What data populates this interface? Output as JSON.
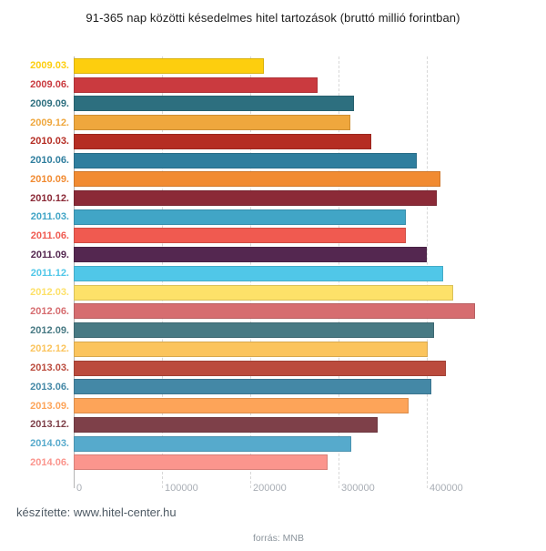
{
  "title": "91-365 nap közötti késedelmes hitel tartozások (bruttó millió forintban)",
  "chart_data": {
    "type": "bar",
    "orientation": "horizontal",
    "title": "91-365 nap közötti késedelmes hitel tartozások (bruttó millió forintban)",
    "xlabel": "",
    "ylabel": "",
    "xlim": [
      0,
      535000
    ],
    "x_ticks": [
      {
        "value": 0,
        "label": "0"
      },
      {
        "value": 100000,
        "label": "100000"
      },
      {
        "value": 200000,
        "label": "200000"
      },
      {
        "value": 300000,
        "label": "300000"
      },
      {
        "value": 400000,
        "label": "400000"
      }
    ],
    "grid": "vertical-dashed",
    "legend": "none",
    "categories": [
      "2009.03.",
      "2009.06.",
      "2009.09.",
      "2009.12.",
      "2010.03.",
      "2010.06.",
      "2010.09.",
      "2010.12.",
      "2011.03.",
      "2011.06.",
      "2011.09.",
      "2011.12.",
      "2012.03.",
      "2012.06.",
      "2012.09.",
      "2012.12.",
      "2013.03.",
      "2013.06.",
      "2013.09.",
      "2013.12.",
      "2014.03.",
      "2014.06."
    ],
    "values": [
      215000,
      276000,
      317000,
      313000,
      337000,
      389000,
      415000,
      411000,
      376000,
      376000,
      400000,
      419000,
      430000,
      455000,
      408000,
      401000,
      422000,
      405000,
      379000,
      344000,
      314000,
      288000
    ],
    "colors": [
      "#fdce0e",
      "#ca3a3f",
      "#2d6f7f",
      "#efa73d",
      "#b52d23",
      "#2f7e9e",
      "#f18b32",
      "#8b2a37",
      "#41a5c6",
      "#f05a50",
      "#542750",
      "#50c7e8",
      "#fde169",
      "#d66d70",
      "#487a84",
      "#fbc45d",
      "#bb4b3d",
      "#4488a6",
      "#fda459",
      "#7e4049",
      "#56aacc",
      "#fb958d"
    ]
  },
  "footer": {
    "credit_prefix": "készítette: ",
    "credit_link": "www.hitel-center.hu",
    "source": "forrás: MNB"
  }
}
